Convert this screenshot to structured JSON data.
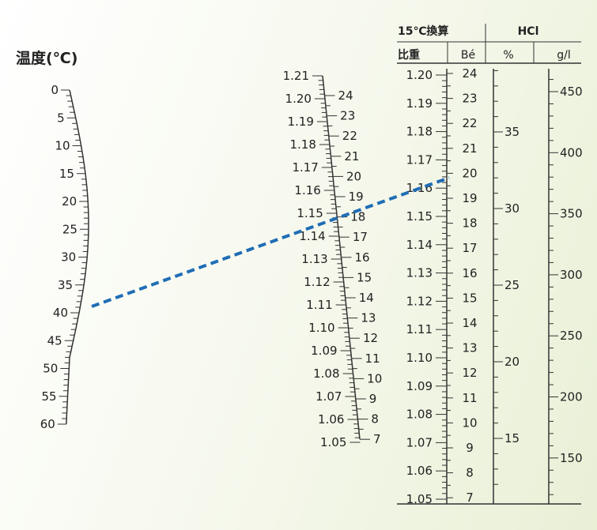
{
  "temperature_scale": {
    "title": "温度(℃)",
    "labels": [
      "0",
      "5",
      "10",
      "15",
      "20",
      "25",
      "30",
      "35",
      "40",
      "45",
      "50",
      "55",
      "60"
    ]
  },
  "nomograph_axis": {
    "sg_labels": [
      "1.21",
      "1.20",
      "1.19",
      "1.18",
      "1.17",
      "1.16",
      "1.15",
      "1.14",
      "1.13",
      "1.12",
      "1.11",
      "1.10",
      "1.09",
      "1.08",
      "1.07",
      "1.06",
      "1.05"
    ],
    "be_labels": [
      "24",
      "23",
      "22",
      "21",
      "20",
      "19",
      "18",
      "17",
      "16",
      "15",
      "14",
      "13",
      "12",
      "11",
      "10",
      "9",
      "8",
      "7"
    ]
  },
  "table_header": {
    "conversion_title": "15℃換算",
    "hcl_title": "HCl",
    "col_specific_gravity": "比重",
    "col_baume": "Bé",
    "col_percent": "%",
    "col_gpl": "g/l"
  },
  "specific_gravity_scale": {
    "labels": [
      "1.20",
      "1.19",
      "1.18",
      "1.17",
      "1.16",
      "1.15",
      "1.14",
      "1.13",
      "1.12",
      "1.11",
      "1.10",
      "1.09",
      "1.08",
      "1.07",
      "1.06",
      "1.05"
    ]
  },
  "baume_scale": {
    "labels": [
      "24",
      "23",
      "22",
      "21",
      "20",
      "19",
      "18",
      "17",
      "16",
      "15",
      "14",
      "13",
      "12",
      "11",
      "10",
      "9",
      "8",
      "7"
    ]
  },
  "percent_scale": {
    "labels": [
      "35",
      "30",
      "25",
      "20",
      "15"
    ]
  },
  "gpl_scale": {
    "labels": [
      "450",
      "400",
      "350",
      "300",
      "250",
      "200",
      "150"
    ]
  },
  "reading_example": {
    "temperature": 40,
    "observed_specific_gravity": 1.14,
    "corrected_specific_gravity": 1.16,
    "line_color": "#1f6db5"
  }
}
